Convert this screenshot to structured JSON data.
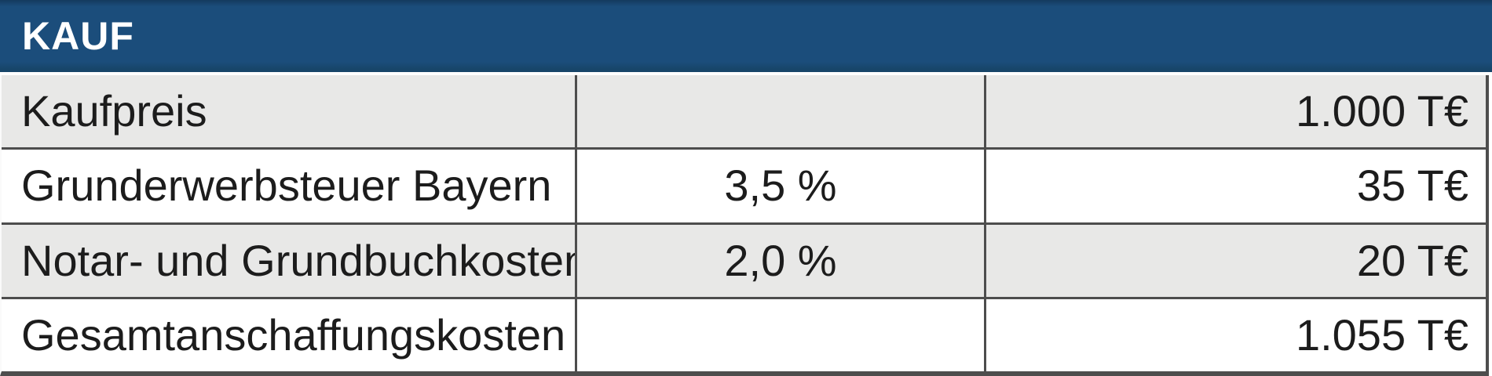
{
  "table": {
    "title": "KAUF",
    "rows": [
      {
        "label": "Kaufpreis",
        "percent": "",
        "value": "1.000 T€"
      },
      {
        "label": "Grunderwerbsteuer Bayern",
        "percent": "3,5 %",
        "value": "35 T€"
      },
      {
        "label": "Notar- und Grundbuchkosten",
        "percent": "2,0 %",
        "value": "20 T€"
      },
      {
        "label": "Gesamtanschaffungskosten",
        "percent": "",
        "value": "1.055 T€"
      }
    ],
    "colors": {
      "header_bg": "#1b4d7b",
      "header_text": "#ffffff",
      "row_bg": "#ffffff",
      "row_alt_bg": "#e8e8e7",
      "border": "#4d4d4d",
      "text": "#1c1c1c"
    }
  }
}
